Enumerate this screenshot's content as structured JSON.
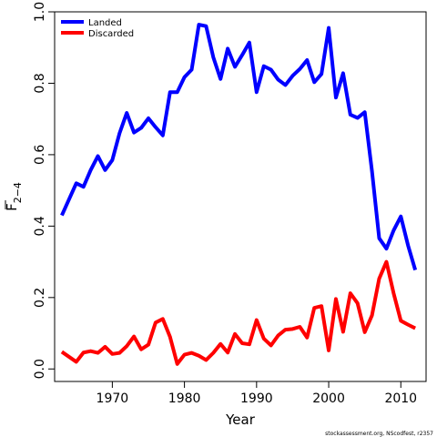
{
  "chart_data": {
    "type": "line",
    "xlabel": "Year",
    "ylabel": {
      "base": "F",
      "subscript": "2−4",
      "overline": true
    },
    "xlim": [
      1962,
      2013.5
    ],
    "ylim": [
      -0.035,
      1.0
    ],
    "xticks": [
      1970,
      1980,
      1990,
      2000,
      2010
    ],
    "yticks": [
      0.0,
      0.2,
      0.4,
      0.6,
      0.8,
      1.0
    ],
    "xtick_labels": [
      "1970",
      "1980",
      "1990",
      "2000",
      "2010"
    ],
    "ytick_labels": [
      "0.0",
      "0.2",
      "0.4",
      "0.6",
      "0.8",
      "1.0"
    ],
    "grid": false,
    "legend_position": "top-left",
    "x": [
      1963,
      1964,
      1965,
      1966,
      1967,
      1968,
      1969,
      1970,
      1971,
      1972,
      1973,
      1974,
      1975,
      1976,
      1977,
      1978,
      1979,
      1980,
      1981,
      1982,
      1983,
      1984,
      1985,
      1986,
      1987,
      1988,
      1989,
      1990,
      1991,
      1992,
      1993,
      1994,
      1995,
      1996,
      1997,
      1998,
      1999,
      2000,
      2001,
      2002,
      2003,
      2004,
      2005,
      2006,
      2007,
      2008,
      2009,
      2010,
      2011,
      2012
    ],
    "series": [
      {
        "name": "Landed",
        "color": "#0000ff",
        "values": [
          0.43,
          0.475,
          0.52,
          0.51,
          0.557,
          0.596,
          0.557,
          0.585,
          0.66,
          0.717,
          0.662,
          0.675,
          0.702,
          0.677,
          0.654,
          0.775,
          0.775,
          0.817,
          0.838,
          0.964,
          0.96,
          0.873,
          0.812,
          0.897,
          0.846,
          0.879,
          0.914,
          0.775,
          0.848,
          0.838,
          0.81,
          0.795,
          0.821,
          0.84,
          0.865,
          0.803,
          0.826,
          0.955,
          0.76,
          0.828,
          0.712,
          0.703,
          0.719,
          0.554,
          0.366,
          0.337,
          0.388,
          0.427,
          0.346,
          0.277
        ]
      },
      {
        "name": "Discarded",
        "color": "#ff0000",
        "values": [
          0.048,
          0.034,
          0.02,
          0.046,
          0.05,
          0.045,
          0.062,
          0.042,
          0.045,
          0.064,
          0.091,
          0.055,
          0.068,
          0.13,
          0.14,
          0.09,
          0.014,
          0.04,
          0.045,
          0.037,
          0.025,
          0.045,
          0.07,
          0.046,
          0.098,
          0.072,
          0.069,
          0.137,
          0.085,
          0.066,
          0.094,
          0.11,
          0.112,
          0.118,
          0.088,
          0.171,
          0.176,
          0.052,
          0.196,
          0.104,
          0.212,
          0.184,
          0.103,
          0.15,
          0.253,
          0.3,
          0.212,
          0.135,
          0.124,
          0.114
        ]
      }
    ]
  },
  "credit": "stockassessment.org, NScodfest, r2357"
}
